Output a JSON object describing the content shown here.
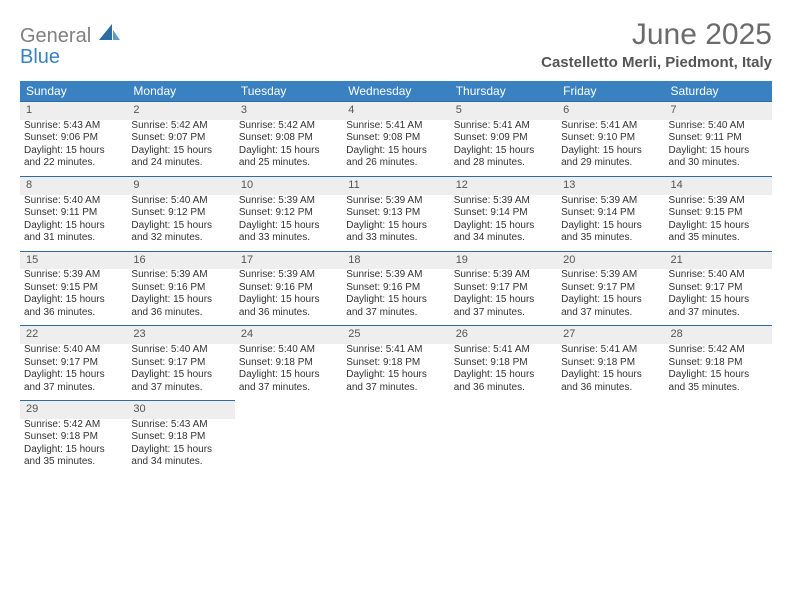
{
  "brand": {
    "word1": "General",
    "word2": "Blue"
  },
  "title": {
    "month": "June 2025",
    "location": "Castelletto Merli, Piedmont, Italy"
  },
  "colors": {
    "header_bg": "#3a81c2",
    "header_text": "#ffffff",
    "daynum_bg": "#eeeeee",
    "rule": "#2e6ca4",
    "logo_gray": "#808080",
    "logo_blue": "#3a81c2",
    "title_color": "#6b6b6b",
    "loc_color": "#555555",
    "body_text": "#333333",
    "page_bg": "#ffffff"
  },
  "day_headers": [
    "Sunday",
    "Monday",
    "Tuesday",
    "Wednesday",
    "Thursday",
    "Friday",
    "Saturday"
  ],
  "weeks": [
    [
      {
        "n": "1",
        "sr": "5:43 AM",
        "ss": "9:06 PM",
        "dl": "15 hours and 22 minutes."
      },
      {
        "n": "2",
        "sr": "5:42 AM",
        "ss": "9:07 PM",
        "dl": "15 hours and 24 minutes."
      },
      {
        "n": "3",
        "sr": "5:42 AM",
        "ss": "9:08 PM",
        "dl": "15 hours and 25 minutes."
      },
      {
        "n": "4",
        "sr": "5:41 AM",
        "ss": "9:08 PM",
        "dl": "15 hours and 26 minutes."
      },
      {
        "n": "5",
        "sr": "5:41 AM",
        "ss": "9:09 PM",
        "dl": "15 hours and 28 minutes."
      },
      {
        "n": "6",
        "sr": "5:41 AM",
        "ss": "9:10 PM",
        "dl": "15 hours and 29 minutes."
      },
      {
        "n": "7",
        "sr": "5:40 AM",
        "ss": "9:11 PM",
        "dl": "15 hours and 30 minutes."
      }
    ],
    [
      {
        "n": "8",
        "sr": "5:40 AM",
        "ss": "9:11 PM",
        "dl": "15 hours and 31 minutes."
      },
      {
        "n": "9",
        "sr": "5:40 AM",
        "ss": "9:12 PM",
        "dl": "15 hours and 32 minutes."
      },
      {
        "n": "10",
        "sr": "5:39 AM",
        "ss": "9:12 PM",
        "dl": "15 hours and 33 minutes."
      },
      {
        "n": "11",
        "sr": "5:39 AM",
        "ss": "9:13 PM",
        "dl": "15 hours and 33 minutes."
      },
      {
        "n": "12",
        "sr": "5:39 AM",
        "ss": "9:14 PM",
        "dl": "15 hours and 34 minutes."
      },
      {
        "n": "13",
        "sr": "5:39 AM",
        "ss": "9:14 PM",
        "dl": "15 hours and 35 minutes."
      },
      {
        "n": "14",
        "sr": "5:39 AM",
        "ss": "9:15 PM",
        "dl": "15 hours and 35 minutes."
      }
    ],
    [
      {
        "n": "15",
        "sr": "5:39 AM",
        "ss": "9:15 PM",
        "dl": "15 hours and 36 minutes."
      },
      {
        "n": "16",
        "sr": "5:39 AM",
        "ss": "9:16 PM",
        "dl": "15 hours and 36 minutes."
      },
      {
        "n": "17",
        "sr": "5:39 AM",
        "ss": "9:16 PM",
        "dl": "15 hours and 36 minutes."
      },
      {
        "n": "18",
        "sr": "5:39 AM",
        "ss": "9:16 PM",
        "dl": "15 hours and 37 minutes."
      },
      {
        "n": "19",
        "sr": "5:39 AM",
        "ss": "9:17 PM",
        "dl": "15 hours and 37 minutes."
      },
      {
        "n": "20",
        "sr": "5:39 AM",
        "ss": "9:17 PM",
        "dl": "15 hours and 37 minutes."
      },
      {
        "n": "21",
        "sr": "5:40 AM",
        "ss": "9:17 PM",
        "dl": "15 hours and 37 minutes."
      }
    ],
    [
      {
        "n": "22",
        "sr": "5:40 AM",
        "ss": "9:17 PM",
        "dl": "15 hours and 37 minutes."
      },
      {
        "n": "23",
        "sr": "5:40 AM",
        "ss": "9:17 PM",
        "dl": "15 hours and 37 minutes."
      },
      {
        "n": "24",
        "sr": "5:40 AM",
        "ss": "9:18 PM",
        "dl": "15 hours and 37 minutes."
      },
      {
        "n": "25",
        "sr": "5:41 AM",
        "ss": "9:18 PM",
        "dl": "15 hours and 37 minutes."
      },
      {
        "n": "26",
        "sr": "5:41 AM",
        "ss": "9:18 PM",
        "dl": "15 hours and 36 minutes."
      },
      {
        "n": "27",
        "sr": "5:41 AM",
        "ss": "9:18 PM",
        "dl": "15 hours and 36 minutes."
      },
      {
        "n": "28",
        "sr": "5:42 AM",
        "ss": "9:18 PM",
        "dl": "15 hours and 35 minutes."
      }
    ],
    [
      {
        "n": "29",
        "sr": "5:42 AM",
        "ss": "9:18 PM",
        "dl": "15 hours and 35 minutes."
      },
      {
        "n": "30",
        "sr": "5:43 AM",
        "ss": "9:18 PM",
        "dl": "15 hours and 34 minutes."
      },
      null,
      null,
      null,
      null,
      null
    ]
  ],
  "labels": {
    "sunrise": "Sunrise: ",
    "sunset": "Sunset: ",
    "daylight": "Daylight: "
  }
}
